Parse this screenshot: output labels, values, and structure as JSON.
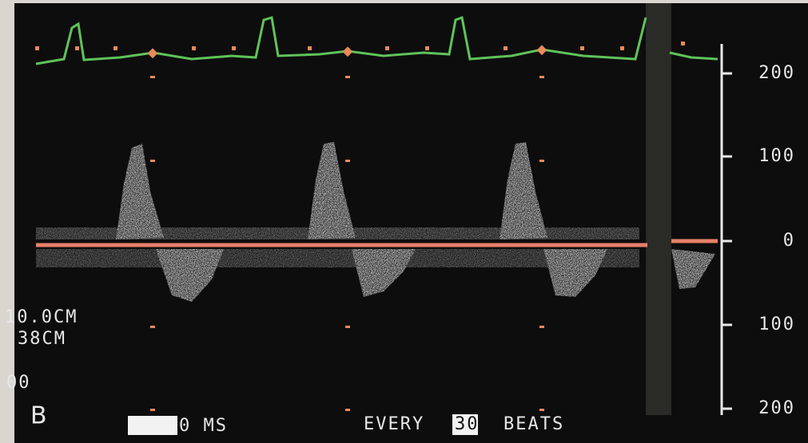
{
  "scale": {
    "labels": [
      "200",
      "100",
      "0",
      "100",
      "200"
    ]
  },
  "depth": {
    "line1": "10.0CM",
    "line2": "38CM",
    "line3": "00"
  },
  "footer": {
    "panel": "B",
    "time": "0 MS",
    "every": "EVERY",
    "count": "30",
    "beats": "BEATS"
  }
}
